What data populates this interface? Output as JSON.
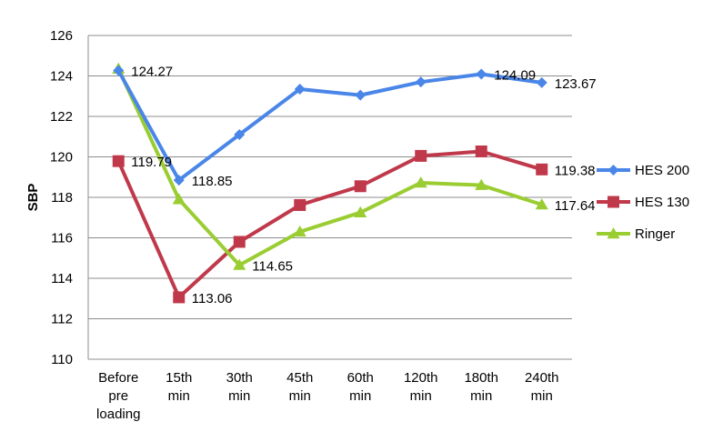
{
  "chart_data": {
    "type": "line",
    "ylabel": "SBP",
    "xlabel": "",
    "ylim": [
      110,
      126
    ],
    "ytick_step": 2,
    "grid": true,
    "legend_position": "right",
    "categories": [
      [
        "Before",
        "pre",
        "loading"
      ],
      [
        "15th",
        "min"
      ],
      [
        "30th",
        "min"
      ],
      [
        "45th",
        "min"
      ],
      [
        "60th",
        "min"
      ],
      [
        "120th",
        "min"
      ],
      [
        "180th",
        "min"
      ],
      [
        "240th",
        "min"
      ]
    ],
    "series": [
      {
        "name": "HES 200",
        "color": "#4A86E8",
        "marker": "diamond",
        "values": [
          124.27,
          118.85,
          121.1,
          123.35,
          123.05,
          123.7,
          124.09,
          123.67
        ],
        "labels": {
          "0": "124.27",
          "1": "118.85",
          "6": "124.09",
          "7": "123.67"
        }
      },
      {
        "name": "HES 130",
        "color": "#C0394B",
        "marker": "square",
        "values": [
          119.79,
          113.06,
          115.8,
          117.62,
          118.55,
          120.05,
          120.27,
          119.38
        ],
        "labels": {
          "0": "119.79",
          "1": "113.06",
          "7": "119.38"
        }
      },
      {
        "name": "Ringer",
        "color": "#9ACD32",
        "marker": "triangle",
        "values": [
          124.35,
          117.9,
          114.65,
          116.3,
          117.25,
          118.72,
          118.6,
          117.64
        ],
        "labels": {
          "2": "114.65",
          "7": "117.64"
        }
      }
    ]
  }
}
